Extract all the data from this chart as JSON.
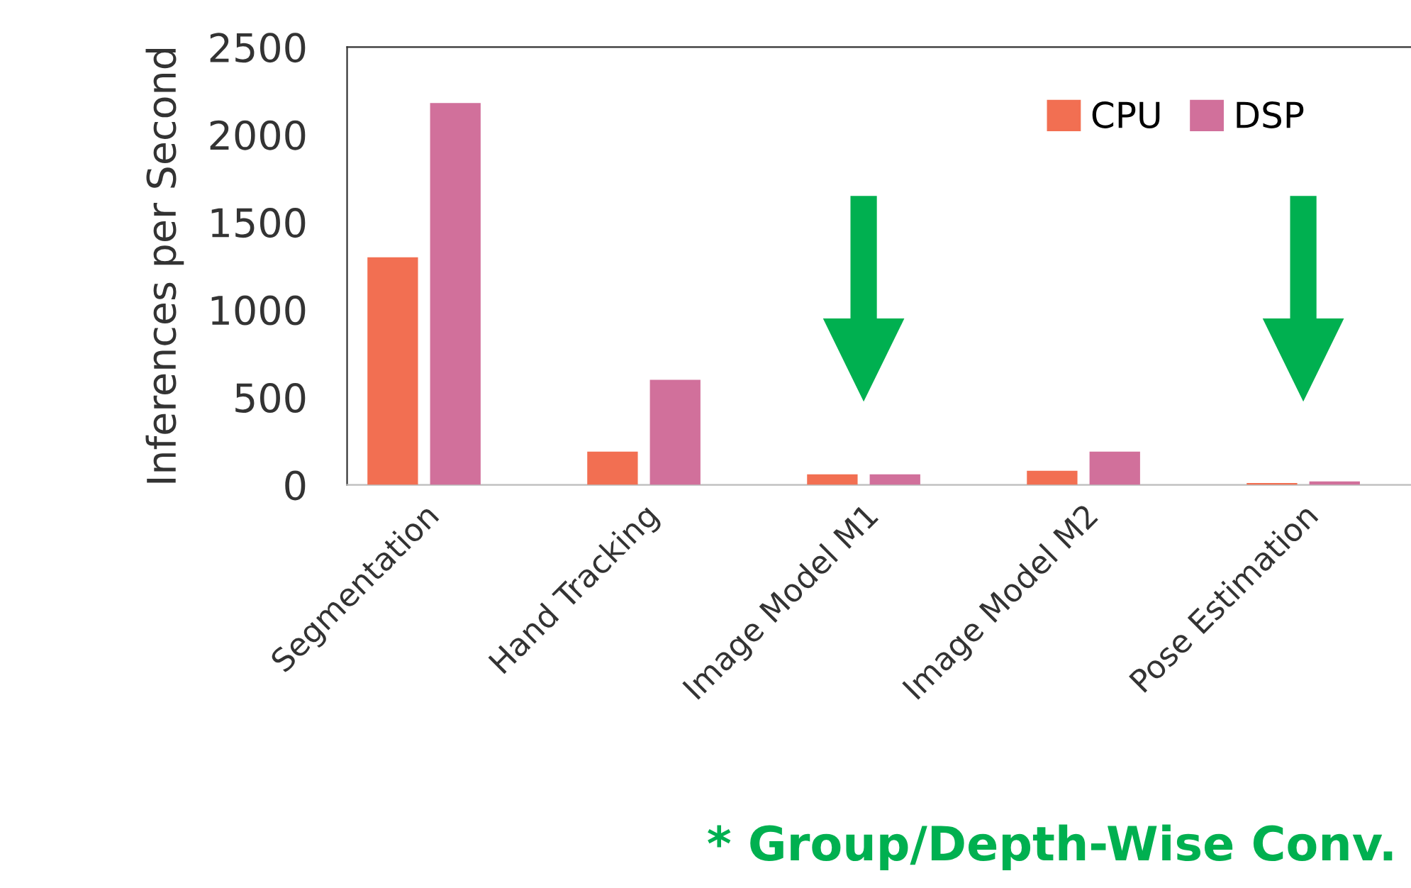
{
  "chart_data": {
    "type": "bar",
    "ylabel": "Inferences per Second",
    "categories": [
      "Segmentation",
      "Hand Tracking",
      "Image Model M1",
      "Image Model M2",
      "Pose Estimation"
    ],
    "series": [
      {
        "name": "CPU",
        "color": "#f26f52",
        "values": [
          1300,
          190,
          60,
          80,
          10
        ]
      },
      {
        "name": "DSP",
        "color": "#d1709b",
        "values": [
          2180,
          600,
          60,
          190,
          20
        ]
      }
    ],
    "ylim": [
      0,
      2500
    ],
    "yticks": [
      0,
      500,
      1000,
      1500,
      2000,
      2500
    ],
    "grid": false,
    "legend": "top right",
    "annotations": [
      "* Group/Depth-Wise Conv."
    ]
  }
}
